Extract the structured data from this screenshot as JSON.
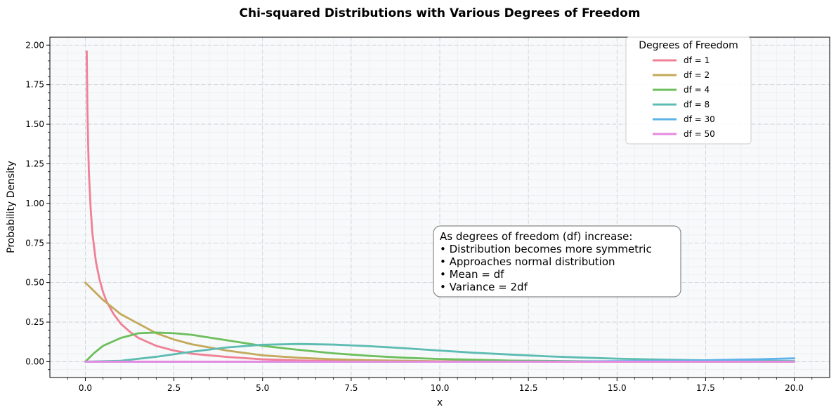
{
  "chart_data": {
    "type": "line",
    "title": "Chi-squared Distributions with Various Degrees of Freedom",
    "xlabel": "x",
    "ylabel": "Probability Density",
    "xlim": [
      -1.0,
      21.0
    ],
    "ylim": [
      -0.1,
      2.05
    ],
    "x_ticks": [
      0.0,
      2.5,
      5.0,
      7.5,
      10.0,
      12.5,
      15.0,
      17.5,
      20.0
    ],
    "x_tick_labels": [
      "0.0",
      "2.5",
      "5.0",
      "7.5",
      "10.0",
      "12.5",
      "15.0",
      "17.5",
      "20.0"
    ],
    "y_ticks": [
      0.0,
      0.25,
      0.5,
      0.75,
      1.0,
      1.25,
      1.5,
      1.75,
      2.0
    ],
    "y_tick_labels": [
      "0.00",
      "0.25",
      "0.50",
      "0.75",
      "1.00",
      "1.25",
      "1.50",
      "1.75",
      "2.00"
    ],
    "grid": true,
    "legend": {
      "title": "Degrees of Freedom",
      "placement": "upper-right"
    },
    "annotation": {
      "lines": [
        "As degrees of freedom (df) increase:",
        "• Distribution becomes more symmetric",
        "• Approaches normal distribution",
        "• Mean = df",
        "• Variance = 2df"
      ]
    },
    "series": [
      {
        "name": "df = 1",
        "color": "#f08094",
        "x": [
          0.04,
          0.06,
          0.08,
          0.1,
          0.15,
          0.2,
          0.3,
          0.4,
          0.5,
          0.6,
          0.8,
          1.0,
          1.25,
          1.5,
          2.0,
          2.5,
          3.0,
          3.5,
          4.0,
          5.0,
          6.0,
          7.0,
          8.0,
          10.0,
          12.0,
          15.0,
          20.0
        ],
        "y": [
          1.96,
          1.58,
          1.37,
          1.2,
          0.97,
          0.81,
          0.63,
          0.52,
          0.44,
          0.38,
          0.3,
          0.24,
          0.19,
          0.15,
          0.1,
          0.07,
          0.05,
          0.04,
          0.03,
          0.015,
          0.008,
          0.004,
          0.002,
          0.0009,
          0.0003,
          0.0001,
          0.0
        ]
      },
      {
        "name": "df = 2",
        "color": "#c4a95a",
        "x": [
          0.0,
          0.5,
          1.0,
          1.5,
          2.0,
          2.5,
          3.0,
          4.0,
          5.0,
          6.0,
          7.0,
          8.0,
          10.0,
          12.0,
          14.0,
          16.0,
          18.0,
          20.0
        ],
        "y": [
          0.5,
          0.39,
          0.3,
          0.24,
          0.18,
          0.14,
          0.11,
          0.07,
          0.04,
          0.025,
          0.015,
          0.009,
          0.003,
          0.001,
          0.0005,
          0.0002,
          0.0001,
          0.0
        ]
      },
      {
        "name": "df = 4",
        "color": "#6cbf5c",
        "x": [
          0.0,
          0.25,
          0.5,
          1.0,
          1.5,
          2.0,
          2.5,
          3.0,
          4.0,
          5.0,
          6.0,
          7.0,
          8.0,
          9.0,
          10.0,
          12.0,
          14.0,
          16.0,
          18.0,
          20.0
        ],
        "y": [
          0.0,
          0.055,
          0.1,
          0.15,
          0.18,
          0.184,
          0.18,
          0.17,
          0.135,
          0.1,
          0.075,
          0.053,
          0.037,
          0.025,
          0.017,
          0.007,
          0.003,
          0.001,
          0.0005,
          0.0002
        ]
      },
      {
        "name": "df = 8",
        "color": "#5cbcb2",
        "x": [
          0.0,
          1.0,
          2.0,
          3.0,
          4.0,
          5.0,
          6.0,
          7.0,
          8.0,
          9.0,
          10.0,
          11.0,
          12.0,
          13.0,
          14.0,
          15.0,
          16.0,
          17.0,
          18.0,
          19.0,
          20.0
        ],
        "y": [
          0.0,
          0.006,
          0.031,
          0.063,
          0.09,
          0.107,
          0.112,
          0.108,
          0.098,
          0.085,
          0.07,
          0.056,
          0.045,
          0.034,
          0.026,
          0.019,
          0.014,
          0.01,
          0.007,
          0.005,
          0.004
        ]
      },
      {
        "name": "df = 30",
        "color": "#5db3e8",
        "x": [
          0.0,
          5.0,
          8.0,
          10.0,
          12.0,
          14.0,
          16.0,
          17.0,
          18.0,
          19.0,
          20.0
        ],
        "y": [
          0.0,
          0.0,
          0.0,
          0.0002,
          0.0007,
          0.002,
          0.005,
          0.007,
          0.011,
          0.015,
          0.021
        ]
      },
      {
        "name": "df = 50",
        "color": "#e58ae0",
        "x": [
          0.0,
          10.0,
          15.0,
          20.0
        ],
        "y": [
          0.0,
          0.0,
          0.0,
          0.0
        ]
      }
    ]
  }
}
